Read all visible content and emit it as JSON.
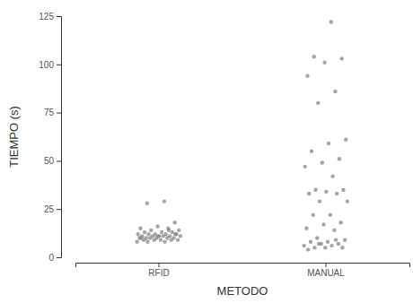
{
  "chart_data": {
    "type": "strip",
    "x_label": "METODO",
    "y_label": "TIEMPO (s)",
    "categories": [
      "RFID",
      "MANUAL"
    ],
    "values": [
      [
        29,
        28,
        18,
        16,
        15,
        15,
        14,
        14,
        13,
        13,
        13,
        12,
        12,
        12,
        12,
        12,
        11,
        11,
        11,
        11,
        11,
        11,
        10,
        10,
        10,
        10,
        10,
        10,
        9,
        9,
        9,
        9,
        9,
        8,
        8,
        8,
        12,
        11,
        10,
        14
      ],
      [
        122,
        104,
        103,
        101,
        94,
        86,
        80,
        61,
        59,
        55,
        51,
        49,
        47,
        42,
        35,
        35,
        34,
        33,
        33,
        29,
        29,
        22,
        22,
        18,
        17,
        15,
        14,
        10,
        9,
        8,
        8,
        7,
        7,
        6,
        6,
        5,
        5,
        5,
        4,
        9,
        7
      ]
    ],
    "color": "#7f7f7f",
    "ylim": [
      0,
      125
    ],
    "yticks": [
      0,
      25,
      50,
      75,
      100,
      125
    ],
    "grid": false
  }
}
